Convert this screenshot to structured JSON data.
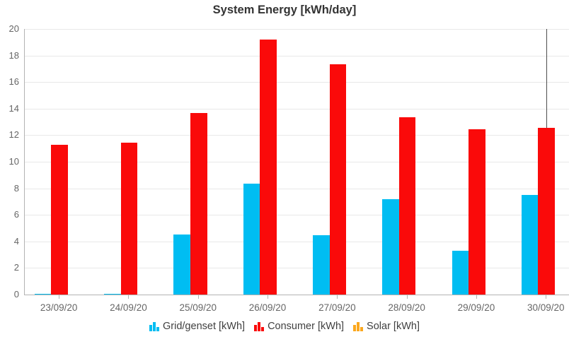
{
  "title": "System Energy [kWh/day]",
  "chart_data": {
    "type": "bar",
    "categories": [
      "23/09/20",
      "24/09/20",
      "25/09/20",
      "26/09/20",
      "27/09/20",
      "28/09/20",
      "29/09/20",
      "30/09/20"
    ],
    "series": [
      {
        "name": "Grid/genset [kWh]",
        "color": "#00bdf2",
        "values": [
          0.05,
          0.05,
          4.5,
          8.35,
          4.45,
          7.2,
          3.3,
          7.5
        ]
      },
      {
        "name": "Consumer [kWh]",
        "color": "#fa0a0a",
        "values": [
          11.3,
          11.45,
          13.65,
          19.2,
          17.35,
          13.35,
          12.45,
          12.55
        ]
      },
      {
        "name": "Solar [kWh]",
        "color": "#fba81e",
        "values": [
          0,
          0,
          0,
          0,
          0,
          0,
          0,
          0
        ]
      }
    ],
    "ylim": [
      0,
      20
    ],
    "yticks": [
      0,
      2,
      4,
      6,
      8,
      10,
      12,
      14,
      16,
      18,
      20
    ],
    "xlabel": "",
    "ylabel": "",
    "grid": true,
    "legend_position": "bottom",
    "annotations": [
      {
        "type": "vline",
        "category_index": 7,
        "label": "cursor-line"
      }
    ]
  },
  "colors": {
    "background": "#ffffff",
    "grid_line": "#e8e8e8",
    "axis_line": "#b3b3b3",
    "crosshair": "#4d4d4d",
    "title_text": "#333333",
    "axis_text": "#666666",
    "legend_text": "#404040"
  }
}
